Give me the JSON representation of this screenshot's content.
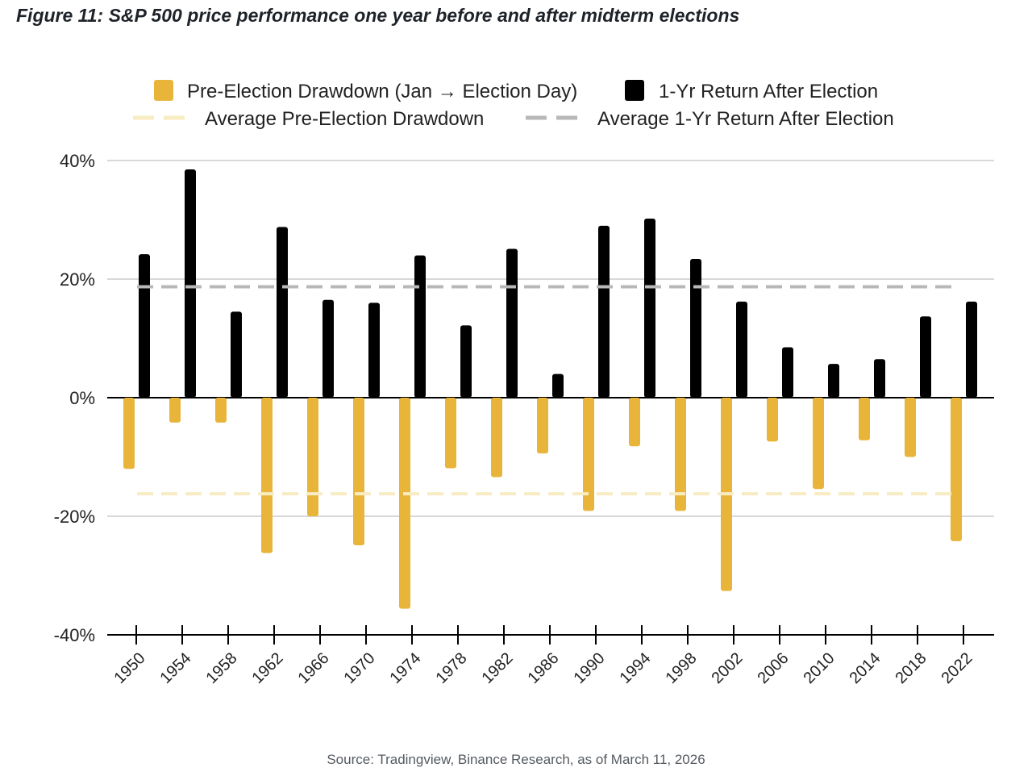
{
  "title": "Figure 11: S&P 500 price performance one year before and after midterm elections",
  "source": "Source: Tradingview, Binance Research, as of March 11, 2026",
  "colors": {
    "pre": "#e8b53a",
    "post": "#000000",
    "avg_pre": "#f8ecc2",
    "avg_post": "#b8b8b8",
    "grid": "#cccccc"
  },
  "chart_data": {
    "type": "bar",
    "categories": [
      "1950",
      "1954",
      "1958",
      "1962",
      "1966",
      "1970",
      "1974",
      "1978",
      "1982",
      "1986",
      "1990",
      "1994",
      "1998",
      "2002",
      "2006",
      "2010",
      "2014",
      "2018",
      "2022"
    ],
    "series": [
      {
        "name": "Pre-Election Drawdown (Jan → Election Day)",
        "values": [
          -12.0,
          -4.2,
          -4.2,
          -26.2,
          -20.0,
          -24.9,
          -35.6,
          -11.9,
          -13.4,
          -9.4,
          -19.1,
          -8.2,
          -19.1,
          -32.6,
          -7.4,
          -15.4,
          -7.2,
          -10.0,
          -24.2
        ]
      },
      {
        "name": "1-Yr Return After Election",
        "values": [
          24.2,
          38.5,
          14.5,
          28.8,
          16.5,
          16.0,
          24.0,
          12.2,
          25.1,
          4.0,
          29.0,
          30.2,
          23.4,
          16.2,
          8.5,
          5.7,
          6.5,
          13.7,
          16.2
        ]
      }
    ],
    "averages": [
      {
        "name": "Average Pre-Election Drawdown",
        "value": -16.2
      },
      {
        "name": "Average 1-Yr Return After Election",
        "value": 18.7
      }
    ],
    "yticks": [
      "40%",
      "20%",
      "0%",
      "-20%",
      "-40%"
    ],
    "ylim": [
      -40,
      40
    ],
    "grid": true,
    "legend_position": "top"
  }
}
